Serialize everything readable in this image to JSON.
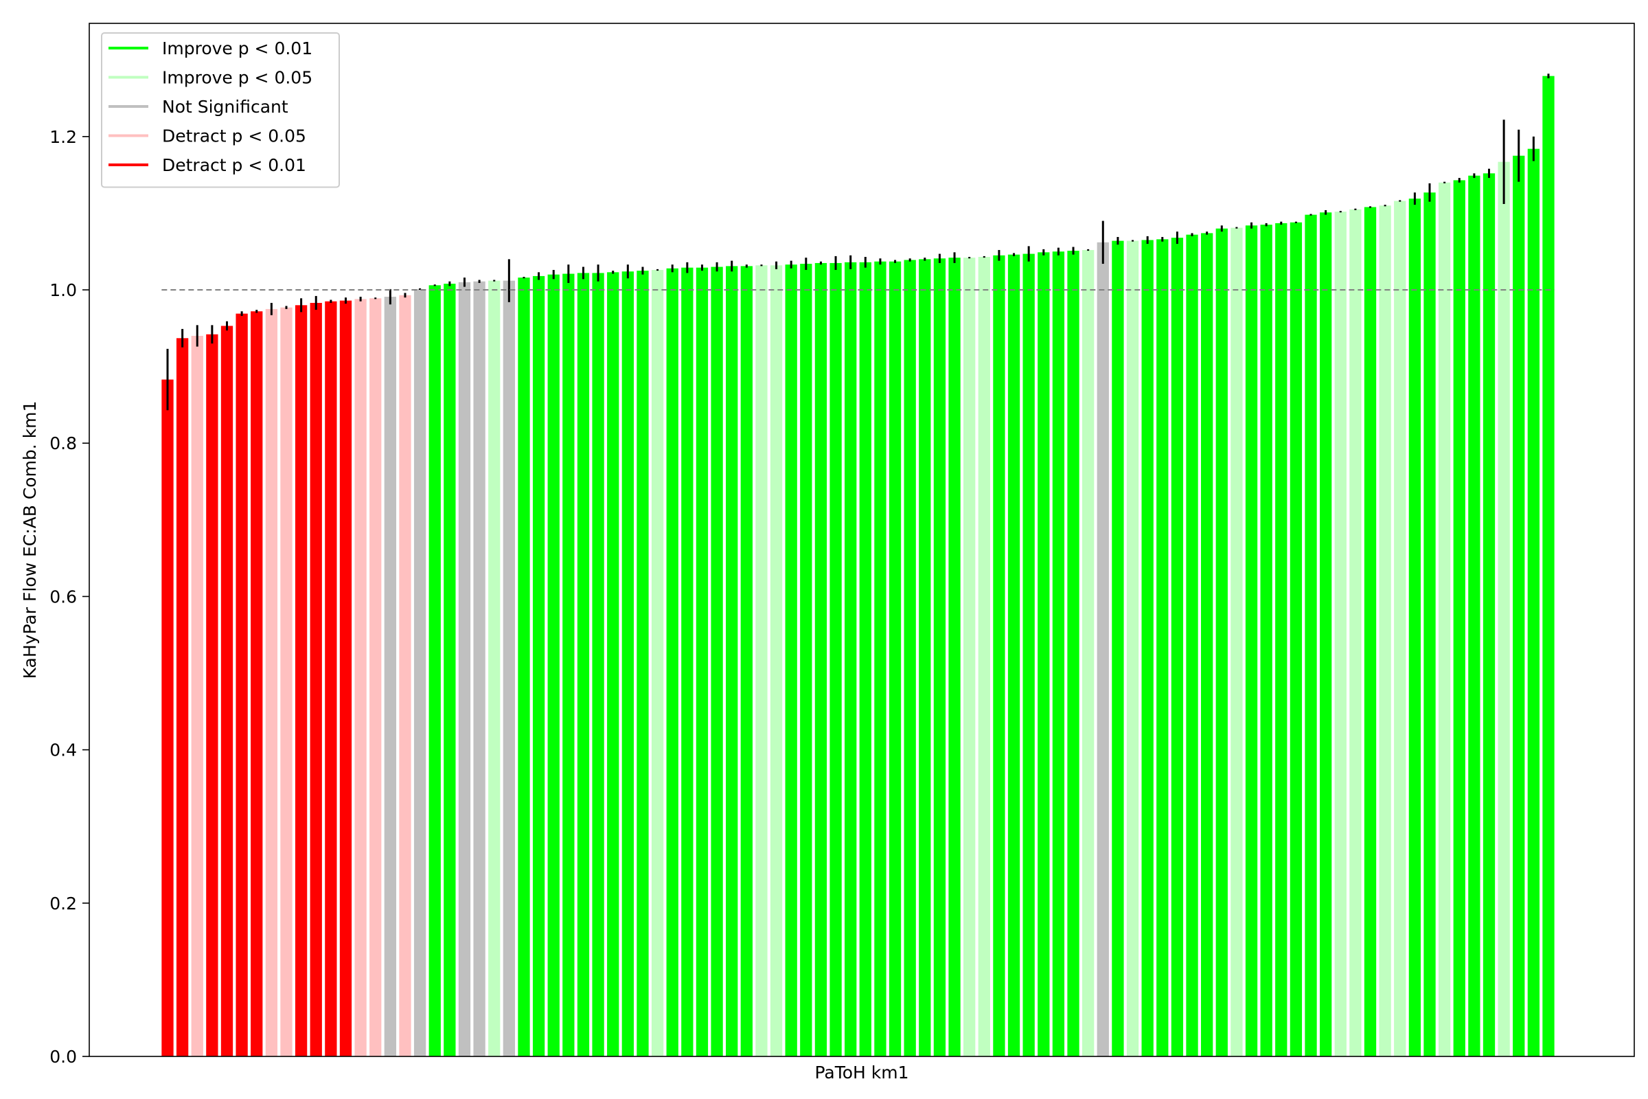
{
  "chart_data": {
    "type": "bar",
    "title": "",
    "xlabel": "PaToH km1",
    "ylabel": "KaHyPar Flow EC:AB Comb. km1",
    "ylim": [
      0,
      1.28
    ],
    "yticks": [
      "0.0",
      "0.2",
      "0.4",
      "0.6",
      "0.8",
      "1.0",
      "1.2"
    ],
    "reference_line": 1.0,
    "grid": false,
    "legend_position": "top-left",
    "status_colors": {
      "improve_01": "#00ff00",
      "improve_05": "#c0ffc0",
      "not_significant": "#c0c0c0",
      "detract_05": "#ffc0c0",
      "detract_01": "#ff0000"
    },
    "legend": [
      {
        "label": "Improve p < 0.01",
        "status": "improve_01"
      },
      {
        "label": "Improve p < 0.05",
        "status": "improve_05"
      },
      {
        "label": "Not Significant",
        "status": "not_significant"
      },
      {
        "label": "Detract p < 0.05",
        "status": "detract_05"
      },
      {
        "label": "Detract p < 0.01",
        "status": "detract_01"
      }
    ],
    "bars": [
      {
        "value": 0.883,
        "err": 0.04,
        "status": "detract_01"
      },
      {
        "value": 0.937,
        "err": 0.012,
        "status": "detract_01"
      },
      {
        "value": 0.94,
        "err": 0.014,
        "status": "detract_05"
      },
      {
        "value": 0.942,
        "err": 0.012,
        "status": "detract_01"
      },
      {
        "value": 0.953,
        "err": 0.006,
        "status": "detract_01"
      },
      {
        "value": 0.969,
        "err": 0.003,
        "status": "detract_01"
      },
      {
        "value": 0.972,
        "err": 0.002,
        "status": "detract_01"
      },
      {
        "value": 0.975,
        "err": 0.008,
        "status": "detract_05"
      },
      {
        "value": 0.977,
        "err": 0.002,
        "status": "detract_05"
      },
      {
        "value": 0.98,
        "err": 0.009,
        "status": "detract_01"
      },
      {
        "value": 0.983,
        "err": 0.009,
        "status": "detract_01"
      },
      {
        "value": 0.985,
        "err": 0.002,
        "status": "detract_01"
      },
      {
        "value": 0.986,
        "err": 0.004,
        "status": "detract_01"
      },
      {
        "value": 0.988,
        "err": 0.003,
        "status": "detract_05"
      },
      {
        "value": 0.989,
        "err": 0.001,
        "status": "detract_05"
      },
      {
        "value": 0.991,
        "err": 0.01,
        "status": "not_significant"
      },
      {
        "value": 0.993,
        "err": 0.003,
        "status": "detract_05"
      },
      {
        "value": 1.001,
        "err": 0.001,
        "status": "not_significant"
      },
      {
        "value": 1.006,
        "err": 0.001,
        "status": "improve_01"
      },
      {
        "value": 1.008,
        "err": 0.003,
        "status": "improve_01"
      },
      {
        "value": 1.01,
        "err": 0.006,
        "status": "not_significant"
      },
      {
        "value": 1.011,
        "err": 0.002,
        "status": "not_significant"
      },
      {
        "value": 1.012,
        "err": 0.001,
        "status": "improve_05"
      },
      {
        "value": 1.012,
        "err": 0.028,
        "status": "not_significant"
      },
      {
        "value": 1.016,
        "err": 0.001,
        "status": "improve_01"
      },
      {
        "value": 1.018,
        "err": 0.005,
        "status": "improve_01"
      },
      {
        "value": 1.02,
        "err": 0.006,
        "status": "improve_01"
      },
      {
        "value": 1.021,
        "err": 0.012,
        "status": "improve_01"
      },
      {
        "value": 1.022,
        "err": 0.008,
        "status": "improve_01"
      },
      {
        "value": 1.022,
        "err": 0.011,
        "status": "improve_01"
      },
      {
        "value": 1.023,
        "err": 0.002,
        "status": "improve_01"
      },
      {
        "value": 1.024,
        "err": 0.009,
        "status": "improve_01"
      },
      {
        "value": 1.025,
        "err": 0.005,
        "status": "improve_01"
      },
      {
        "value": 1.026,
        "err": 0.001,
        "status": "improve_05"
      },
      {
        "value": 1.028,
        "err": 0.005,
        "status": "improve_01"
      },
      {
        "value": 1.029,
        "err": 0.007,
        "status": "improve_01"
      },
      {
        "value": 1.029,
        "err": 0.004,
        "status": "improve_01"
      },
      {
        "value": 1.03,
        "err": 0.006,
        "status": "improve_01"
      },
      {
        "value": 1.031,
        "err": 0.007,
        "status": "improve_01"
      },
      {
        "value": 1.031,
        "err": 0.002,
        "status": "improve_01"
      },
      {
        "value": 1.032,
        "err": 0.001,
        "status": "improve_05"
      },
      {
        "value": 1.032,
        "err": 0.005,
        "status": "improve_05"
      },
      {
        "value": 1.033,
        "err": 0.005,
        "status": "improve_01"
      },
      {
        "value": 1.034,
        "err": 0.008,
        "status": "improve_01"
      },
      {
        "value": 1.035,
        "err": 0.002,
        "status": "improve_01"
      },
      {
        "value": 1.035,
        "err": 0.009,
        "status": "improve_01"
      },
      {
        "value": 1.036,
        "err": 0.009,
        "status": "improve_01"
      },
      {
        "value": 1.036,
        "err": 0.007,
        "status": "improve_01"
      },
      {
        "value": 1.037,
        "err": 0.004,
        "status": "improve_01"
      },
      {
        "value": 1.037,
        "err": 0.002,
        "status": "improve_01"
      },
      {
        "value": 1.039,
        "err": 0.002,
        "status": "improve_01"
      },
      {
        "value": 1.04,
        "err": 0.002,
        "status": "improve_01"
      },
      {
        "value": 1.041,
        "err": 0.006,
        "status": "improve_01"
      },
      {
        "value": 1.042,
        "err": 0.007,
        "status": "improve_01"
      },
      {
        "value": 1.042,
        "err": 0.001,
        "status": "improve_05"
      },
      {
        "value": 1.043,
        "err": 0.001,
        "status": "improve_05"
      },
      {
        "value": 1.045,
        "err": 0.007,
        "status": "improve_01"
      },
      {
        "value": 1.046,
        "err": 0.002,
        "status": "improve_01"
      },
      {
        "value": 1.047,
        "err": 0.01,
        "status": "improve_01"
      },
      {
        "value": 1.049,
        "err": 0.004,
        "status": "improve_01"
      },
      {
        "value": 1.05,
        "err": 0.005,
        "status": "improve_01"
      },
      {
        "value": 1.051,
        "err": 0.005,
        "status": "improve_01"
      },
      {
        "value": 1.052,
        "err": 0.001,
        "status": "improve_05"
      },
      {
        "value": 1.062,
        "err": 0.028,
        "status": "not_significant"
      },
      {
        "value": 1.064,
        "err": 0.005,
        "status": "improve_01"
      },
      {
        "value": 1.064,
        "err": 0.001,
        "status": "improve_05"
      },
      {
        "value": 1.065,
        "err": 0.005,
        "status": "improve_01"
      },
      {
        "value": 1.066,
        "err": 0.003,
        "status": "improve_01"
      },
      {
        "value": 1.068,
        "err": 0.008,
        "status": "improve_01"
      },
      {
        "value": 1.072,
        "err": 0.002,
        "status": "improve_01"
      },
      {
        "value": 1.074,
        "err": 0.002,
        "status": "improve_01"
      },
      {
        "value": 1.08,
        "err": 0.004,
        "status": "improve_01"
      },
      {
        "value": 1.081,
        "err": 0.001,
        "status": "improve_05"
      },
      {
        "value": 1.084,
        "err": 0.004,
        "status": "improve_01"
      },
      {
        "value": 1.085,
        "err": 0.002,
        "status": "improve_01"
      },
      {
        "value": 1.087,
        "err": 0.002,
        "status": "improve_01"
      },
      {
        "value": 1.088,
        "err": 0.001,
        "status": "improve_01"
      },
      {
        "value": 1.098,
        "err": 0.001,
        "status": "improve_01"
      },
      {
        "value": 1.101,
        "err": 0.003,
        "status": "improve_01"
      },
      {
        "value": 1.102,
        "err": 0.001,
        "status": "improve_05"
      },
      {
        "value": 1.105,
        "err": 0.001,
        "status": "improve_05"
      },
      {
        "value": 1.108,
        "err": 0.001,
        "status": "improve_01"
      },
      {
        "value": 1.11,
        "err": 0.001,
        "status": "improve_05"
      },
      {
        "value": 1.116,
        "err": 0.001,
        "status": "improve_05"
      },
      {
        "value": 1.119,
        "err": 0.008,
        "status": "improve_01"
      },
      {
        "value": 1.127,
        "err": 0.012,
        "status": "improve_01"
      },
      {
        "value": 1.14,
        "err": 0.001,
        "status": "improve_05"
      },
      {
        "value": 1.143,
        "err": 0.003,
        "status": "improve_01"
      },
      {
        "value": 1.149,
        "err": 0.003,
        "status": "improve_01"
      },
      {
        "value": 1.152,
        "err": 0.006,
        "status": "improve_01"
      },
      {
        "value": 1.167,
        "err": 0.055,
        "status": "improve_05"
      },
      {
        "value": 1.175,
        "err": 0.034,
        "status": "improve_01"
      },
      {
        "value": 1.184,
        "err": 0.016,
        "status": "improve_01"
      },
      {
        "value": 1.279,
        "err": 0.003,
        "status": "improve_01"
      }
    ]
  }
}
